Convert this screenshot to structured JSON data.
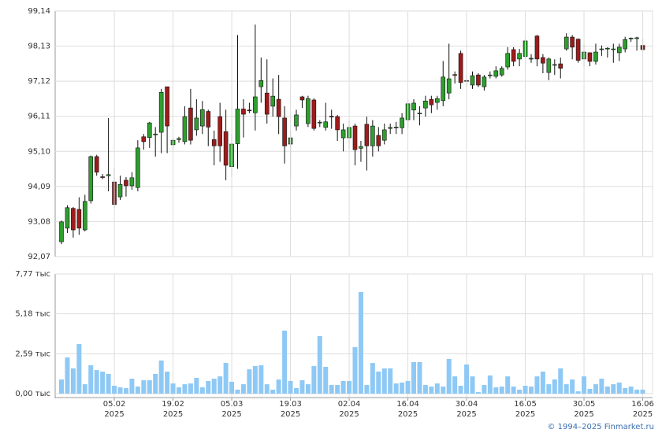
{
  "chart_data": [
    {
      "type": "candlestick",
      "up_color": "#2f9e2f",
      "down_color": "#9e1b1b",
      "wick_color": "#111111",
      "ylim": [
        92.07,
        99.14
      ],
      "yticks": [
        {
          "value": 92.07,
          "label": "92,07"
        },
        {
          "value": 93.08,
          "label": "93,08"
        },
        {
          "value": 94.09,
          "label": "94,09"
        },
        {
          "value": 95.1,
          "label": "95,10"
        },
        {
          "value": 96.11,
          "label": "96,11"
        },
        {
          "value": 97.12,
          "label": "97,12"
        },
        {
          "value": 98.13,
          "label": "98,13"
        },
        {
          "value": 99.14,
          "label": "99,14"
        }
      ],
      "grid": true,
      "open": [
        92.5,
        92.89,
        93.46,
        93.43,
        92.84,
        93.68,
        94.95,
        94.37,
        94.4,
        94.22,
        93.79,
        94.27,
        94.11,
        94.06,
        95.52,
        95.5,
        95.58,
        95.65,
        96.96,
        95.29,
        95.44,
        95.38,
        96.35,
        95.72,
        95.83,
        96.25,
        95.44,
        96.1,
        95.67,
        94.66,
        95.32,
        96.32,
        96.29,
        96.21,
        96.96,
        96.78,
        96.4,
        96.6,
        96.06,
        95.31,
        95.83,
        96.67,
        95.9,
        96.58,
        95.92,
        95.79,
        96.11,
        96.1,
        95.49,
        95.49,
        95.83,
        95.19,
        95.88,
        95.26,
        95.56,
        95.42,
        95.76,
        95.78,
        95.78,
        96.01,
        96.29,
        96.18,
        96.35,
        96.6,
        96.51,
        96.56,
        96.78,
        97.31,
        97.92,
        97.14,
        97.01,
        97.3,
        96.96,
        97.28,
        97.26,
        97.3,
        97.53,
        98.03,
        97.76,
        97.83,
        97.76,
        98.42,
        97.8,
        97.37,
        97.59,
        97.62,
        98.05,
        98.39,
        98.33,
        97.76,
        97.94,
        97.69,
        98.03,
        98.05,
        98.04,
        97.94,
        98.05,
        98.34,
        98.36,
        98.15
      ],
      "high": [
        93.11,
        93.55,
        93.5,
        93.78,
        93.85,
        94.98,
        95.0,
        94.45,
        96.06,
        94.62,
        94.4,
        94.36,
        94.5,
        95.42,
        95.6,
        95.95,
        95.8,
        96.9,
        96.96,
        95.5,
        95.52,
        96.4,
        96.9,
        96.6,
        96.55,
        96.3,
        95.7,
        96.5,
        96.3,
        95.6,
        98.45,
        96.6,
        96.5,
        98.75,
        97.8,
        97.75,
        97.2,
        97.3,
        96.4,
        95.7,
        96.3,
        96.7,
        96.7,
        96.63,
        96.0,
        96.5,
        96.3,
        96.15,
        95.9,
        96.0,
        95.9,
        95.4,
        96.1,
        96.0,
        95.8,
        95.9,
        95.9,
        95.95,
        96.2,
        96.6,
        96.6,
        96.4,
        96.7,
        96.7,
        96.7,
        97.7,
        98.2,
        97.4,
        98.0,
        97.3,
        97.4,
        97.35,
        97.3,
        97.4,
        97.55,
        97.55,
        98.1,
        98.1,
        98.05,
        98.35,
        97.9,
        98.45,
        97.9,
        97.8,
        97.75,
        97.8,
        98.5,
        98.45,
        98.35,
        98.2,
        97.95,
        98.2,
        98.15,
        98.1,
        98.2,
        98.2,
        98.4,
        98.38,
        98.4,
        98.35
      ],
      "low": [
        92.43,
        92.75,
        92.62,
        92.7,
        92.8,
        93.6,
        94.4,
        94.3,
        93.95,
        93.47,
        93.7,
        93.8,
        94.0,
        93.95,
        95.15,
        95.2,
        94.95,
        95.05,
        95.05,
        95.15,
        95.35,
        95.3,
        95.3,
        95.55,
        95.6,
        95.25,
        94.7,
        94.8,
        94.27,
        94.36,
        94.6,
        95.5,
        96.2,
        95.7,
        96.5,
        95.9,
        96.1,
        95.6,
        94.75,
        94.3,
        95.7,
        96.35,
        95.8,
        95.7,
        95.8,
        95.7,
        95.75,
        95.4,
        95.1,
        95.2,
        94.7,
        94.8,
        94.55,
        94.95,
        95.1,
        95.3,
        95.6,
        95.6,
        95.6,
        95.75,
        96.0,
        95.85,
        96.1,
        96.2,
        96.3,
        96.4,
        96.6,
        97.05,
        96.9,
        96.95,
        96.9,
        96.95,
        96.85,
        97.2,
        97.2,
        97.25,
        97.45,
        97.55,
        97.55,
        97.75,
        97.65,
        97.55,
        97.35,
        97.15,
        97.3,
        97.2,
        98.0,
        97.75,
        97.65,
        97.55,
        97.55,
        97.6,
        97.85,
        97.8,
        97.65,
        97.7,
        97.95,
        98.25,
        98.0,
        97.95
      ],
      "close": [
        93.07,
        93.48,
        92.84,
        92.89,
        93.66,
        94.95,
        94.5,
        94.35,
        94.43,
        93.57,
        94.15,
        94.11,
        94.34,
        95.2,
        95.38,
        95.92,
        95.6,
        96.8,
        95.83,
        95.42,
        95.47,
        96.1,
        95.42,
        96.06,
        96.3,
        95.8,
        95.26,
        95.26,
        94.7,
        95.31,
        96.32,
        96.17,
        96.28,
        96.67,
        97.14,
        96.17,
        96.69,
        96.1,
        95.26,
        95.49,
        96.15,
        96.58,
        96.62,
        95.76,
        95.94,
        95.95,
        96.09,
        95.72,
        95.72,
        95.79,
        95.15,
        95.24,
        95.26,
        95.83,
        95.26,
        95.72,
        95.79,
        95.8,
        96.06,
        96.47,
        96.49,
        96.2,
        96.55,
        96.44,
        96.62,
        97.24,
        97.19,
        97.3,
        97.08,
        97.14,
        97.28,
        97.01,
        97.24,
        97.3,
        97.42,
        97.49,
        97.92,
        97.69,
        97.92,
        98.28,
        97.78,
        97.76,
        97.64,
        97.76,
        97.6,
        97.49,
        98.39,
        98.1,
        97.72,
        97.96,
        97.69,
        97.96,
        98.05,
        98.07,
        98.05,
        98.1,
        98.32,
        98.36,
        98.37,
        98.03
      ]
    },
    {
      "type": "bar",
      "color": "#8ec9f5",
      "ylim": [
        0,
        7.77
      ],
      "yticks": [
        {
          "value": 0,
          "label": "0,00 тыс"
        },
        {
          "value": 2.59,
          "label": "2,59 тыс"
        },
        {
          "value": 5.18,
          "label": "5,18 тыс"
        },
        {
          "value": 7.77,
          "label": "7,77 тыс"
        }
      ],
      "grid": true,
      "categories": [
        null,
        null,
        null,
        null,
        null,
        null,
        null,
        null,
        null,
        "05.02\n2025",
        null,
        null,
        null,
        null,
        null,
        null,
        null,
        null,
        null,
        "19.02\n2025",
        null,
        null,
        null,
        null,
        null,
        null,
        null,
        null,
        null,
        "05.03\n2025",
        null,
        null,
        null,
        null,
        null,
        null,
        null,
        null,
        null,
        "19.03\n2025",
        null,
        null,
        null,
        null,
        null,
        null,
        null,
        null,
        null,
        "02.04\n2025",
        null,
        null,
        null,
        null,
        null,
        null,
        null,
        null,
        null,
        "16.04\n2025",
        null,
        null,
        null,
        null,
        null,
        null,
        null,
        null,
        null,
        "30.04\n2025",
        null,
        null,
        null,
        null,
        null,
        null,
        null,
        null,
        null,
        "16.05\n2025",
        null,
        null,
        null,
        null,
        null,
        null,
        null,
        null,
        null,
        "30.05\n2025",
        null,
        null,
        null,
        null,
        null,
        null,
        null,
        null,
        null,
        "16.06\n2025"
      ],
      "values": [
        0.92,
        2.35,
        1.64,
        3.22,
        0.61,
        1.84,
        1.53,
        1.43,
        1.28,
        0.51,
        0.41,
        0.36,
        0.97,
        0.46,
        0.87,
        0.87,
        1.28,
        2.15,
        1.43,
        0.66,
        0.41,
        0.61,
        0.66,
        1.02,
        0.41,
        0.82,
        0.97,
        1.12,
        1.99,
        0.77,
        0.26,
        0.61,
        1.58,
        1.79,
        1.84,
        0.61,
        0.26,
        0.92,
        4.09,
        0.82,
        0.36,
        0.87,
        0.61,
        1.79,
        3.73,
        1.74,
        0.56,
        0.56,
        0.82,
        0.82,
        3.02,
        6.6,
        0.56,
        1.99,
        1.43,
        1.64,
        1.64,
        0.66,
        0.72,
        0.82,
        2.05,
        2.05,
        0.56,
        0.46,
        0.66,
        0.46,
        2.25,
        1.12,
        0.51,
        1.89,
        1.12,
        0.1,
        0.56,
        1.18,
        0.41,
        0.46,
        1.12,
        0.46,
        0.26,
        0.51,
        0.46,
        1.12,
        1.43,
        0.61,
        0.92,
        1.64,
        0.61,
        0.92,
        0.15,
        1.12,
        0.31,
        0.61,
        0.97,
        0.46,
        0.61,
        0.72,
        0.36,
        0.46,
        0.26,
        0.26
      ]
    }
  ],
  "footer": "© 1994–2025 Finmarket.ru"
}
